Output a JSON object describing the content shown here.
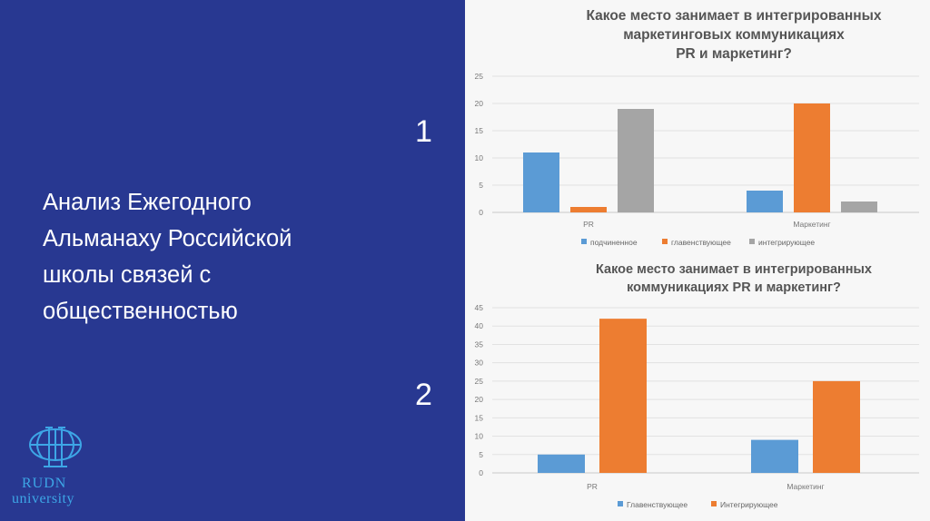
{
  "slide": {
    "text": "Анализ  Ежегодного\nАльманаху Российской\nшколы связей с\nобщественностью",
    "number1": "1",
    "number2": "2",
    "logo": {
      "line1": "RUDN",
      "line2": "university"
    }
  },
  "colors": {
    "panel": "#283891",
    "blue": "#5b9bd5",
    "orange": "#ed7d31",
    "gray": "#a5a5a5"
  },
  "chart_data": [
    {
      "type": "bar",
      "title": "Какое место занимает в интегрированных маркетинговых коммуникациях PR и маркетинг?",
      "categories": [
        "PR",
        "Маркетинг"
      ],
      "ylim": [
        0,
        25
      ],
      "yticks": [
        0,
        5,
        10,
        15,
        20,
        25
      ],
      "series": [
        {
          "name": "подчиненное",
          "color": "#5b9bd5",
          "values": [
            11,
            4
          ]
        },
        {
          "name": "главенствующее",
          "color": "#ed7d31",
          "values": [
            1,
            20
          ]
        },
        {
          "name": "интегрирующее",
          "color": "#a5a5a5",
          "values": [
            19,
            2
          ]
        }
      ],
      "grid": true,
      "legend": "bottom"
    },
    {
      "type": "bar",
      "title": "Какое место занимает в интегрированных коммуникациях PR и маркетинг?",
      "categories": [
        "PR",
        "Маркетинг"
      ],
      "ylim": [
        0,
        45
      ],
      "yticks": [
        0,
        5,
        10,
        15,
        20,
        25,
        30,
        35,
        40,
        45
      ],
      "series": [
        {
          "name": "Главенствующее",
          "color": "#5b9bd5",
          "values": [
            5,
            9
          ]
        },
        {
          "name": "Интегрирующее",
          "color": "#ed7d31",
          "values": [
            42,
            25
          ]
        }
      ],
      "grid": true,
      "legend": "bottom"
    }
  ]
}
